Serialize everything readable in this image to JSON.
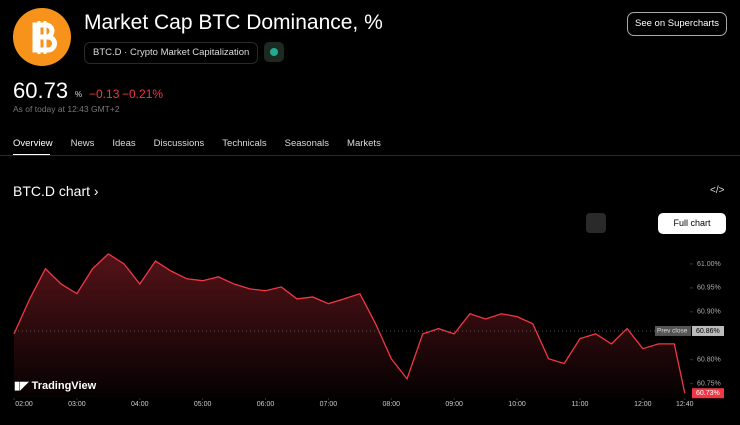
{
  "header": {
    "title": "Market Cap BTC Dominance, %",
    "symbol": "BTC.D",
    "source": "Crypto Market Capitalization",
    "button": "See on Supercharts",
    "price": "60.73",
    "price_unit": "%",
    "change": "−0.13",
    "change_percent": "−0.21%",
    "as_of": "As of today at 12:43 GMT+2"
  },
  "tabs": [
    "Overview",
    "News",
    "Ideas",
    "Discussions",
    "Technicals",
    "Seasonals",
    "Markets"
  ],
  "section": {
    "title": "BTC.D chart",
    "full_chart": "Full chart",
    "brand": "TradingView"
  },
  "chart_data": {
    "type": "area",
    "color": "#f23645",
    "grid": false,
    "x": [
      2,
      2.25,
      2.5,
      2.75,
      3,
      3.25,
      3.5,
      3.75,
      4,
      4.25,
      4.5,
      4.75,
      5,
      5.25,
      5.5,
      5.75,
      6,
      6.25,
      6.5,
      6.75,
      7,
      7.25,
      7.5,
      7.75,
      8,
      8.25,
      8.5,
      8.75,
      9,
      9.25,
      9.5,
      9.75,
      10,
      10.25,
      10.5,
      10.75,
      11,
      11.25,
      11.5,
      11.75,
      12,
      12.25,
      12.5,
      12.667
    ],
    "series": [
      {
        "name": "BTC.D",
        "color": "#f23645",
        "values": [
          60.854,
          60.927,
          60.99,
          60.958,
          60.938,
          60.99,
          61.021,
          61.0,
          60.958,
          61.006,
          60.985,
          60.969,
          60.965,
          60.973,
          60.958,
          60.948,
          60.944,
          60.952,
          60.927,
          60.931,
          60.917,
          60.927,
          60.938,
          60.875,
          60.802,
          60.76,
          60.854,
          60.865,
          60.854,
          60.896,
          60.885,
          60.896,
          60.89,
          60.875,
          60.802,
          60.792,
          60.844,
          60.854,
          60.833,
          60.865,
          60.823,
          60.833,
          60.833,
          60.73
        ]
      }
    ],
    "xlim": [
      2,
      12.75
    ],
    "ylim": [
      60.72,
      61.05
    ],
    "xticks": [
      {
        "value": 2,
        "label": "02:00"
      },
      {
        "value": 3,
        "label": "03:00"
      },
      {
        "value": 4,
        "label": "04:00"
      },
      {
        "value": 5,
        "label": "05:00"
      },
      {
        "value": 6,
        "label": "06:00"
      },
      {
        "value": 7,
        "label": "07:00"
      },
      {
        "value": 8,
        "label": "08:00"
      },
      {
        "value": 9,
        "label": "09:00"
      },
      {
        "value": 10,
        "label": "10:00"
      },
      {
        "value": 11,
        "label": "11:00"
      },
      {
        "value": 12,
        "label": "12:00"
      },
      {
        "value": 12.667,
        "label": "12:40"
      }
    ],
    "yticks": [
      {
        "value": 60.75,
        "label": "60.75%"
      },
      {
        "value": 60.8,
        "label": "60.80%"
      },
      {
        "value": 60.9,
        "label": "60.90%"
      },
      {
        "value": 60.95,
        "label": "60.95%"
      },
      {
        "value": 61.0,
        "label": "61.00%"
      }
    ],
    "prev_close": {
      "text": "Prev close",
      "value": 60.86,
      "label": "60.86%"
    },
    "last": {
      "value": 60.73,
      "label": "60.73%"
    }
  }
}
